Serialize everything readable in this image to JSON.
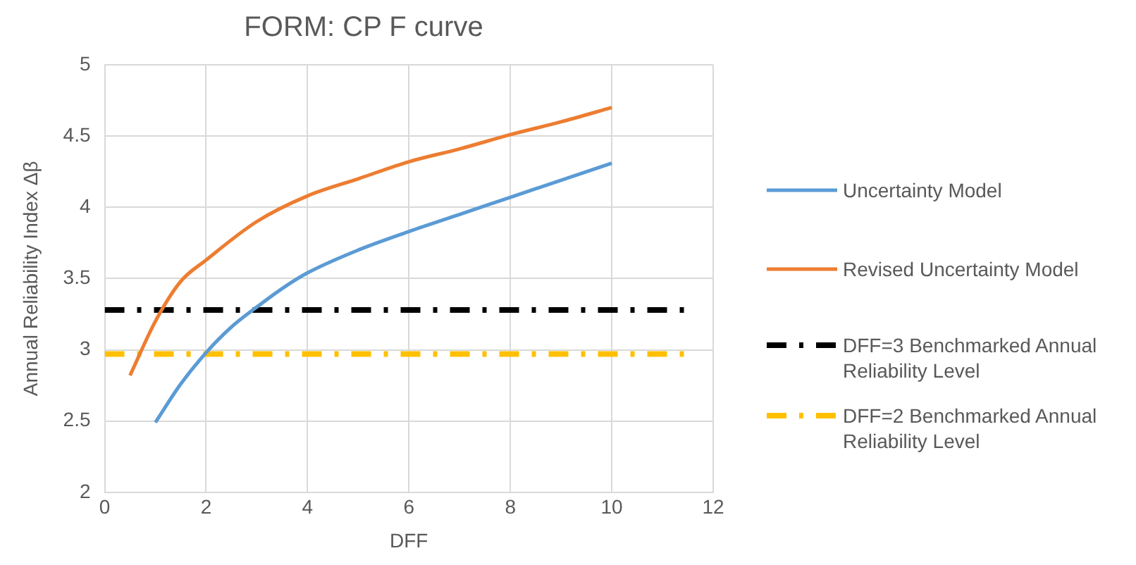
{
  "chart_data": {
    "type": "line",
    "title": "FORM: CP F curve",
    "xlabel": "DFF",
    "ylabel": "Annual Reliability Index Δβ",
    "xlim": [
      0,
      12
    ],
    "xticks": [
      0,
      2,
      4,
      6,
      8,
      10,
      12
    ],
    "ylim": [
      2,
      5
    ],
    "yticks": [
      2,
      2.5,
      3,
      3.5,
      4,
      4.5,
      5
    ],
    "grid": true,
    "legend": "right",
    "marker": "none",
    "series": [
      {
        "name": "Uncertainty Model",
        "color": "#5b9bd5",
        "line_style": "solid",
        "x": [
          1,
          1.5,
          2,
          2.5,
          3,
          3.5,
          4,
          5,
          6,
          7,
          8,
          9,
          10
        ],
        "values": [
          2.49,
          2.76,
          2.98,
          3.16,
          3.3,
          3.43,
          3.54,
          3.7,
          3.83,
          3.95,
          4.07,
          4.19,
          4.31
        ]
      },
      {
        "name": "Revised Uncertainty Model",
        "color": "#ed7d31",
        "line_style": "solid",
        "x": [
          0.5,
          1,
          1.5,
          2,
          3,
          4,
          5,
          6,
          7,
          8,
          9,
          10
        ],
        "values": [
          2.82,
          3.2,
          3.48,
          3.63,
          3.9,
          4.08,
          4.2,
          4.32,
          4.41,
          4.51,
          4.6,
          4.7
        ]
      },
      {
        "name": "DFF=3 Benchmarked Annual Reliability Level",
        "color": "#000000",
        "line_style": "dashed",
        "x": [
          0,
          11.5
        ],
        "values": [
          3.28,
          3.28
        ]
      },
      {
        "name": "DFF=2 Benchmarked Annual Reliability Level",
        "color": "#ffc000",
        "line_style": "dashed",
        "x": [
          0,
          11.5
        ],
        "values": [
          2.97,
          2.97
        ]
      }
    ]
  }
}
